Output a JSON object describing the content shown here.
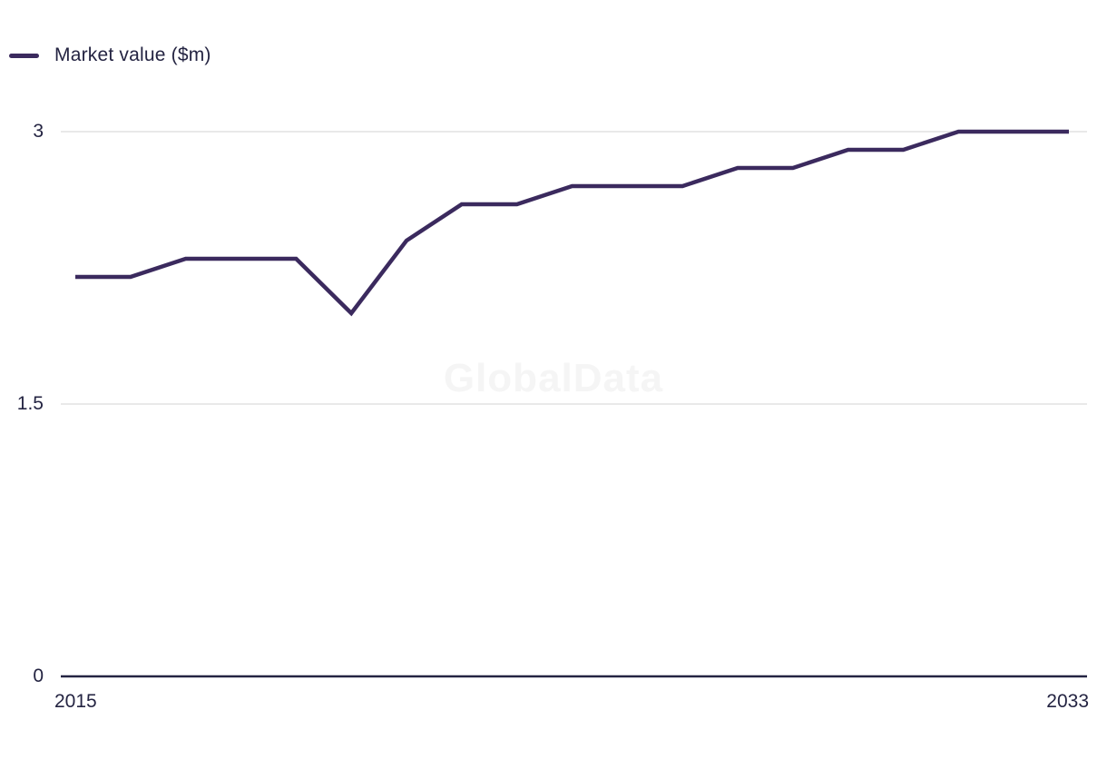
{
  "legend": {
    "label": "Market value ($m)"
  },
  "watermark": "GlobalData",
  "colors": {
    "line": "#3b2a5e",
    "grid": "#e2e2e2",
    "axis": "#242442",
    "text": "#242442",
    "watermark": "#f5f5f5",
    "background": "#ffffff"
  },
  "chart_data": {
    "type": "line",
    "title": "",
    "xlabel": "",
    "ylabel": "Market value ($m)",
    "x": [
      2015,
      2016,
      2017,
      2018,
      2019,
      2020,
      2021,
      2022,
      2023,
      2024,
      2025,
      2026,
      2027,
      2028,
      2029,
      2030,
      2031,
      2032,
      2033
    ],
    "series": [
      {
        "name": "Market value ($m)",
        "values": [
          2.2,
          2.2,
          2.3,
          2.3,
          2.3,
          2.0,
          2.4,
          2.6,
          2.6,
          2.7,
          2.7,
          2.7,
          2.8,
          2.8,
          2.9,
          2.9,
          3.0,
          3.0,
          3.0
        ]
      }
    ],
    "ylim": [
      0,
      3
    ],
    "yticks": [
      0,
      1.5,
      3
    ],
    "ytick_labels": [
      "0",
      "1.5",
      "3"
    ],
    "xtick_labels": [
      "2015",
      "2033"
    ],
    "grid": "horizontal",
    "legend_position": "top-left"
  }
}
